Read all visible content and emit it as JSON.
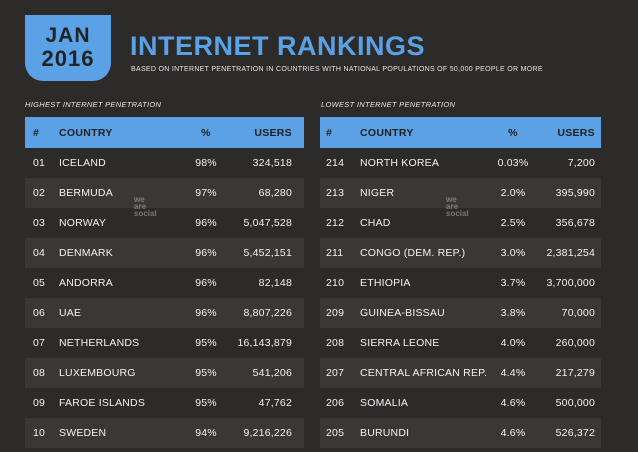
{
  "header": {
    "month": "JAN",
    "year": "2016",
    "title": "INTERNET RANKINGS",
    "subtitle": "BASED ON INTERNET PENETRATION IN COUNTRIES WITH NATIONAL POPULATIONS OF 50,000 PEOPLE OR MORE"
  },
  "watermark": {
    "line1": "we",
    "line2": "are",
    "line3": "social"
  },
  "colors": {
    "accent": "#5aa1e6",
    "background": "#2d2a2a",
    "row_alt": "#3c3737"
  },
  "left": {
    "section_title": "HIGHEST INTERNET PENETRATION",
    "columns": {
      "rank": "#",
      "country": "COUNTRY",
      "pct": "%",
      "users": "USERS"
    },
    "rows": [
      {
        "rank": "01",
        "country": "ICELAND",
        "pct": "98%",
        "users": "324,518"
      },
      {
        "rank": "02",
        "country": "BERMUDA",
        "pct": "97%",
        "users": "68,280"
      },
      {
        "rank": "03",
        "country": "NORWAY",
        "pct": "96%",
        "users": "5,047,528"
      },
      {
        "rank": "04",
        "country": "DENMARK",
        "pct": "96%",
        "users": "5,452,151"
      },
      {
        "rank": "05",
        "country": "ANDORRA",
        "pct": "96%",
        "users": "82,148"
      },
      {
        "rank": "06",
        "country": "UAE",
        "pct": "96%",
        "users": "8,807,226"
      },
      {
        "rank": "07",
        "country": "NETHERLANDS",
        "pct": "95%",
        "users": "16,143,879"
      },
      {
        "rank": "08",
        "country": "LUXEMBOURG",
        "pct": "95%",
        "users": "541,206"
      },
      {
        "rank": "09",
        "country": "FAROE ISLANDS",
        "pct": "95%",
        "users": "47,762"
      },
      {
        "rank": "10",
        "country": "SWEDEN",
        "pct": "94%",
        "users": "9,216,226"
      }
    ]
  },
  "right": {
    "section_title": "LOWEST INTERNET PENETRATION",
    "columns": {
      "rank": "#",
      "country": "COUNTRY",
      "pct": "%",
      "users": "USERS"
    },
    "rows": [
      {
        "rank": "214",
        "country": "NORTH KOREA",
        "pct": "0.03%",
        "users": "7,200"
      },
      {
        "rank": "213",
        "country": "NIGER",
        "pct": "2.0%",
        "users": "395,990"
      },
      {
        "rank": "212",
        "country": "CHAD",
        "pct": "2.5%",
        "users": "356,678"
      },
      {
        "rank": "211",
        "country": "CONGO (DEM. REP.)",
        "pct": "3.0%",
        "users": "2,381,254"
      },
      {
        "rank": "210",
        "country": "ETHIOPIA",
        "pct": "3.7%",
        "users": "3,700,000"
      },
      {
        "rank": "209",
        "country": "GUINEA-BISSAU",
        "pct": "3.8%",
        "users": "70,000"
      },
      {
        "rank": "208",
        "country": "SIERRA LEONE",
        "pct": "4.0%",
        "users": "260,000"
      },
      {
        "rank": "207",
        "country": "CENTRAL AFRICAN REP.",
        "pct": "4.4%",
        "users": "217,279"
      },
      {
        "rank": "206",
        "country": "SOMALIA",
        "pct": "4.6%",
        "users": "500,000"
      },
      {
        "rank": "205",
        "country": "BURUNDI",
        "pct": "4.6%",
        "users": "526,372"
      }
    ]
  }
}
